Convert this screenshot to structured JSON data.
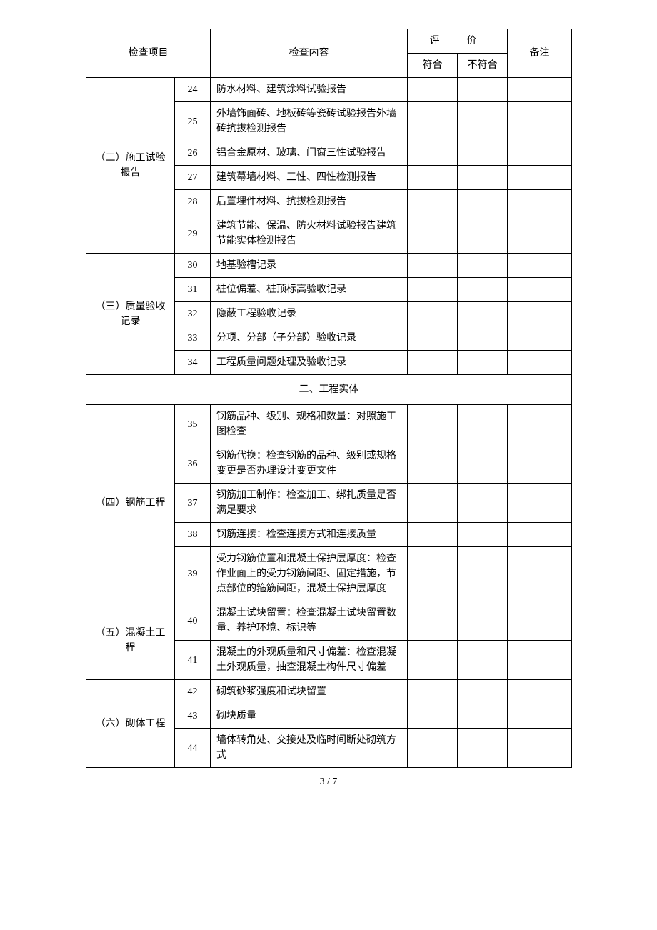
{
  "header": {
    "col_category": "检查项目",
    "col_content": "检查内容",
    "col_eval": "评　价",
    "col_eval_yes": "符合",
    "col_eval_no": "不符合",
    "col_remark": "备注"
  },
  "groups": [
    {
      "category": "（二）施工试验报告",
      "rows": [
        {
          "num": "24",
          "content": "防水材料、建筑涂料试验报告"
        },
        {
          "num": "25",
          "content": "外墙饰面砖、地板砖等瓷砖试验报告外墙砖抗拔检测报告"
        },
        {
          "num": "26",
          "content": "铝合金原材、玻璃、门窗三性试验报告"
        },
        {
          "num": "27",
          "content": "建筑幕墙材料、三性、四性检测报告"
        },
        {
          "num": "28",
          "content": "后置埋件材料、抗拔检测报告"
        },
        {
          "num": "29",
          "content": "建筑节能、保温、防火材料试验报告建筑节能实体检测报告"
        }
      ]
    },
    {
      "category": "（三）质量验收记录",
      "rows": [
        {
          "num": "30",
          "content": "地基验槽记录"
        },
        {
          "num": "31",
          "content": "桩位偏差、桩顶标高验收记录"
        },
        {
          "num": "32",
          "content": "隐蔽工程验收记录"
        },
        {
          "num": "33",
          "content": "分项、分部（子分部）验收记录"
        },
        {
          "num": "34",
          "content": "工程质量问题处理及验收记录"
        }
      ]
    }
  ],
  "section_header": "二、工程实体",
  "groups2": [
    {
      "category": "（四）钢筋工程",
      "rows": [
        {
          "num": "35",
          "content": "钢筋品种、级别、规格和数量：对照施工图检查"
        },
        {
          "num": "36",
          "content": "钢筋代换：检查钢筋的品种、级别或规格变更是否办理设计变更文件"
        },
        {
          "num": "37",
          "content": "钢筋加工制作：检查加工、绑扎质量是否满足要求"
        },
        {
          "num": "38",
          "content": "钢筋连接：检查连接方式和连接质量"
        },
        {
          "num": "39",
          "content": "受力钢筋位置和混凝土保护层厚度：检查作业面上的受力钢筋间距、固定措施，节点部位的箍筋间距，混凝土保护层厚度"
        }
      ]
    },
    {
      "category": "（五）混凝土工程",
      "rows": [
        {
          "num": "40",
          "content": "混凝土试块留置：检查混凝土试块留置数量、养护环境、标识等"
        },
        {
          "num": "41",
          "content": "混凝土的外观质量和尺寸偏差：检查混凝土外观质量，抽查混凝土构件尺寸偏差"
        }
      ]
    },
    {
      "category": "（六）砌体工程",
      "rows": [
        {
          "num": "42",
          "content": "砌筑砂浆强度和试块留置"
        },
        {
          "num": "43",
          "content": "砌块质量"
        },
        {
          "num": "44",
          "content": "墙体转角处、交接处及临时间断处砌筑方式"
        }
      ]
    }
  ],
  "footer": "3 / 7"
}
